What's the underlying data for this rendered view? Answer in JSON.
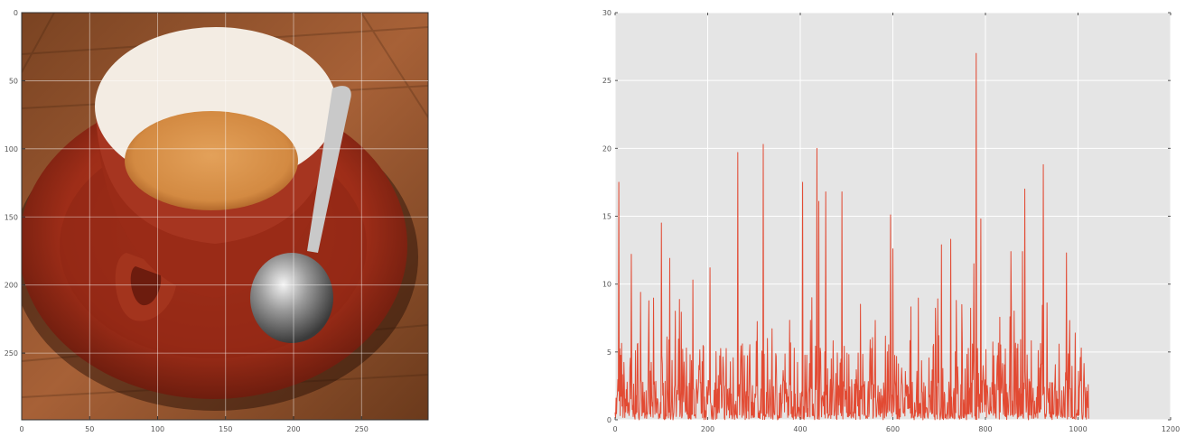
{
  "image_panel": {
    "xticks": [
      0,
      50,
      100,
      150,
      200,
      250
    ],
    "yticks": [
      0,
      50,
      100,
      150,
      200,
      250
    ],
    "xlim": [
      0,
      299
    ],
    "ylim": [
      299,
      0
    ]
  },
  "chart_data": [
    {
      "type": "line",
      "xlim": [
        0,
        1200
      ],
      "ylim": [
        0,
        30
      ],
      "xticks": [
        0,
        200,
        400,
        600,
        800,
        1000,
        1200
      ],
      "yticks": [
        0,
        5,
        10,
        15,
        20,
        25,
        30
      ],
      "grid": true,
      "background": "#e5e5e5",
      "line_color": "#e24a33",
      "x_start": 0,
      "x_end": 1023,
      "peaks": [
        {
          "x": 8,
          "y": 17.5
        },
        {
          "x": 35,
          "y": 12.2
        },
        {
          "x": 55,
          "y": 9.4
        },
        {
          "x": 100,
          "y": 14.5
        },
        {
          "x": 118,
          "y": 11.9
        },
        {
          "x": 168,
          "y": 10.3
        },
        {
          "x": 205,
          "y": 11.2
        },
        {
          "x": 265,
          "y": 19.7
        },
        {
          "x": 320,
          "y": 20.3
        },
        {
          "x": 405,
          "y": 17.5
        },
        {
          "x": 425,
          "y": 9.0
        },
        {
          "x": 436,
          "y": 20.0
        },
        {
          "x": 440,
          "y": 16.1
        },
        {
          "x": 455,
          "y": 16.8
        },
        {
          "x": 490,
          "y": 16.8
        },
        {
          "x": 595,
          "y": 15.1
        },
        {
          "x": 600,
          "y": 12.6
        },
        {
          "x": 705,
          "y": 12.9
        },
        {
          "x": 725,
          "y": 13.3
        },
        {
          "x": 775,
          "y": 11.5
        },
        {
          "x": 780,
          "y": 27.0
        },
        {
          "x": 790,
          "y": 14.8
        },
        {
          "x": 855,
          "y": 12.4
        },
        {
          "x": 880,
          "y": 12.4
        },
        {
          "x": 885,
          "y": 17.0
        },
        {
          "x": 925,
          "y": 18.8
        },
        {
          "x": 975,
          "y": 12.3
        },
        {
          "x": 1005,
          "y": 4.6
        },
        {
          "x": 1020,
          "y": 2.1
        }
      ]
    }
  ]
}
